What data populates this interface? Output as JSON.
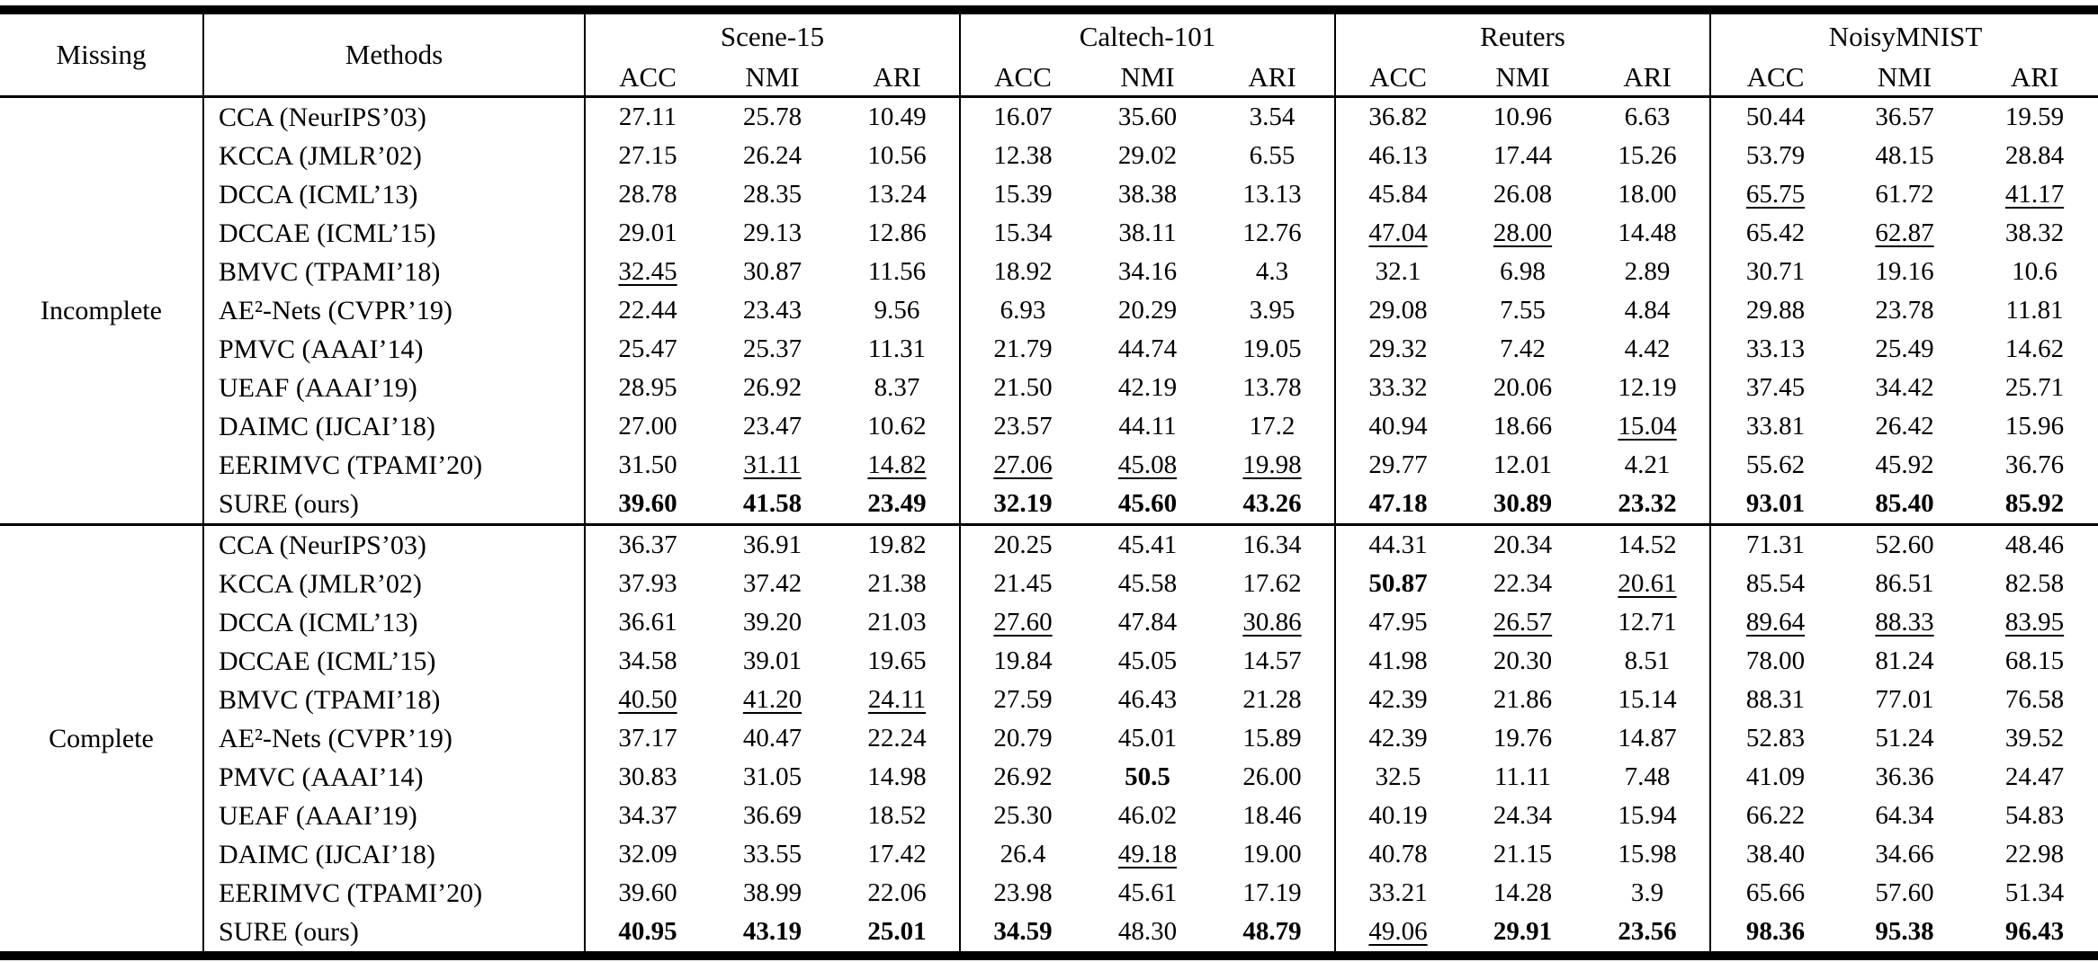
{
  "table": {
    "col_headers": {
      "missing": "Missing",
      "methods": "Methods"
    },
    "datasets": [
      "Scene-15",
      "Caltech-101",
      "Reuters",
      "NoisyMNIST"
    ],
    "metric_labels": [
      "ACC",
      "NMI",
      "ARI"
    ],
    "groups": [
      {
        "missing": "Incomplete",
        "rows": [
          {
            "method": "CCA (NeurIPS’03)",
            "values": [
              "27.11",
              "25.78",
              "10.49",
              "16.07",
              "35.60",
              "3.54",
              "36.82",
              "10.96",
              "6.63",
              "50.44",
              "36.57",
              "19.59"
            ],
            "bold": [],
            "underline": []
          },
          {
            "method": "KCCA (JMLR’02)",
            "values": [
              "27.15",
              "26.24",
              "10.56",
              "12.38",
              "29.02",
              "6.55",
              "46.13",
              "17.44",
              "15.26",
              "53.79",
              "48.15",
              "28.84"
            ],
            "bold": [],
            "underline": []
          },
          {
            "method": "DCCA (ICML’13)",
            "values": [
              "28.78",
              "28.35",
              "13.24",
              "15.39",
              "38.38",
              "13.13",
              "45.84",
              "26.08",
              "18.00",
              "65.75",
              "61.72",
              "41.17"
            ],
            "bold": [],
            "underline": [
              9,
              11
            ]
          },
          {
            "method": "DCCAE (ICML’15)",
            "values": [
              "29.01",
              "29.13",
              "12.86",
              "15.34",
              "38.11",
              "12.76",
              "47.04",
              "28.00",
              "14.48",
              "65.42",
              "62.87",
              "38.32"
            ],
            "bold": [],
            "underline": [
              6,
              7,
              10
            ]
          },
          {
            "method": "BMVC (TPAMI’18)",
            "values": [
              "32.45",
              "30.87",
              "11.56",
              "18.92",
              "34.16",
              "4.3",
              "32.1",
              "6.98",
              "2.89",
              "30.71",
              "19.16",
              "10.6"
            ],
            "bold": [],
            "underline": [
              0
            ]
          },
          {
            "method": "AE²-Nets (CVPR’19)",
            "values": [
              "22.44",
              "23.43",
              "9.56",
              "6.93",
              "20.29",
              "3.95",
              "29.08",
              "7.55",
              "4.84",
              "29.88",
              "23.78",
              "11.81"
            ],
            "bold": [],
            "underline": []
          },
          {
            "method": "PMVC (AAAI’14)",
            "values": [
              "25.47",
              "25.37",
              "11.31",
              "21.79",
              "44.74",
              "19.05",
              "29.32",
              "7.42",
              "4.42",
              "33.13",
              "25.49",
              "14.62"
            ],
            "bold": [],
            "underline": []
          },
          {
            "method": "UEAF (AAAI’19)",
            "values": [
              "28.95",
              "26.92",
              "8.37",
              "21.50",
              "42.19",
              "13.78",
              "33.32",
              "20.06",
              "12.19",
              "37.45",
              "34.42",
              "25.71"
            ],
            "bold": [],
            "underline": []
          },
          {
            "method": "DAIMC (IJCAI’18)",
            "values": [
              "27.00",
              "23.47",
              "10.62",
              "23.57",
              "44.11",
              "17.2",
              "40.94",
              "18.66",
              "15.04",
              "33.81",
              "26.42",
              "15.96"
            ],
            "bold": [],
            "underline": [
              8
            ]
          },
          {
            "method": "EERIMVC (TPAMI’20)",
            "values": [
              "31.50",
              "31.11",
              "14.82",
              "27.06",
              "45.08",
              "19.98",
              "29.77",
              "12.01",
              "4.21",
              "55.62",
              "45.92",
              "36.76"
            ],
            "bold": [],
            "underline": [
              1,
              2,
              3,
              4,
              5
            ]
          },
          {
            "method": "SURE (ours)",
            "values": [
              "39.60",
              "41.58",
              "23.49",
              "32.19",
              "45.60",
              "43.26",
              "47.18",
              "30.89",
              "23.32",
              "93.01",
              "85.40",
              "85.92"
            ],
            "bold": [
              0,
              1,
              2,
              3,
              4,
              5,
              6,
              7,
              8,
              9,
              10,
              11
            ],
            "underline": []
          }
        ]
      },
      {
        "missing": "Complete",
        "rows": [
          {
            "method": "CCA (NeurIPS’03)",
            "values": [
              "36.37",
              "36.91",
              "19.82",
              "20.25",
              "45.41",
              "16.34",
              "44.31",
              "20.34",
              "14.52",
              "71.31",
              "52.60",
              "48.46"
            ],
            "bold": [],
            "underline": []
          },
          {
            "method": "KCCA (JMLR’02)",
            "values": [
              "37.93",
              "37.42",
              "21.38",
              "21.45",
              "45.58",
              "17.62",
              "50.87",
              "22.34",
              "20.61",
              "85.54",
              "86.51",
              "82.58"
            ],
            "bold": [
              6
            ],
            "underline": [
              8
            ]
          },
          {
            "method": "DCCA (ICML’13)",
            "values": [
              "36.61",
              "39.20",
              "21.03",
              "27.60",
              "47.84",
              "30.86",
              "47.95",
              "26.57",
              "12.71",
              "89.64",
              "88.33",
              "83.95"
            ],
            "bold": [],
            "underline": [
              3,
              5,
              7,
              9,
              10,
              11
            ]
          },
          {
            "method": "DCCAE (ICML’15)",
            "values": [
              "34.58",
              "39.01",
              "19.65",
              "19.84",
              "45.05",
              "14.57",
              "41.98",
              "20.30",
              "8.51",
              "78.00",
              "81.24",
              "68.15"
            ],
            "bold": [],
            "underline": []
          },
          {
            "method": "BMVC (TPAMI’18)",
            "values": [
              "40.50",
              "41.20",
              "24.11",
              "27.59",
              "46.43",
              "21.28",
              "42.39",
              "21.86",
              "15.14",
              "88.31",
              "77.01",
              "76.58"
            ],
            "bold": [],
            "underline": [
              0,
              1,
              2
            ]
          },
          {
            "method": "AE²-Nets (CVPR’19)",
            "values": [
              "37.17",
              "40.47",
              "22.24",
              "20.79",
              "45.01",
              "15.89",
              "42.39",
              "19.76",
              "14.87",
              "52.83",
              "51.24",
              "39.52"
            ],
            "bold": [],
            "underline": []
          },
          {
            "method": "PMVC (AAAI’14)",
            "values": [
              "30.83",
              "31.05",
              "14.98",
              "26.92",
              "50.5",
              "26.00",
              "32.5",
              "11.11",
              "7.48",
              "41.09",
              "36.36",
              "24.47"
            ],
            "bold": [
              4
            ],
            "underline": []
          },
          {
            "method": "UEAF (AAAI’19)",
            "values": [
              "34.37",
              "36.69",
              "18.52",
              "25.30",
              "46.02",
              "18.46",
              "40.19",
              "24.34",
              "15.94",
              "66.22",
              "64.34",
              "54.83"
            ],
            "bold": [],
            "underline": []
          },
          {
            "method": "DAIMC (IJCAI’18)",
            "values": [
              "32.09",
              "33.55",
              "17.42",
              "26.4",
              "49.18",
              "19.00",
              "40.78",
              "21.15",
              "15.98",
              "38.40",
              "34.66",
              "22.98"
            ],
            "bold": [],
            "underline": [
              4
            ]
          },
          {
            "method": "EERIMVC (TPAMI’20)",
            "values": [
              "39.60",
              "38.99",
              "22.06",
              "23.98",
              "45.61",
              "17.19",
              "33.21",
              "14.28",
              "3.9",
              "65.66",
              "57.60",
              "51.34"
            ],
            "bold": [],
            "underline": []
          },
          {
            "method": "SURE (ours)",
            "values": [
              "40.95",
              "43.19",
              "25.01",
              "34.59",
              "48.30",
              "48.79",
              "49.06",
              "29.91",
              "23.56",
              "98.36",
              "95.38",
              "96.43"
            ],
            "bold": [
              0,
              1,
              2,
              3,
              5,
              7,
              8,
              9,
              10,
              11
            ],
            "underline": [
              6
            ]
          }
        ]
      }
    ]
  }
}
